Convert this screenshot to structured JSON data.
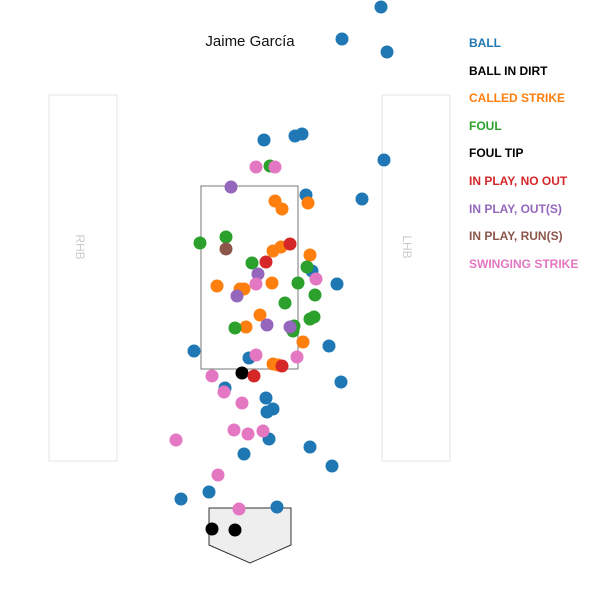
{
  "chart_data": {
    "type": "scatter",
    "title": "Jaime García",
    "zone_labels": {
      "left": "RHB",
      "right": "LHB"
    },
    "categories": [
      {
        "name": "BALL",
        "color": "#1f77b4"
      },
      {
        "name": "BALL IN DIRT",
        "color": "#000000"
      },
      {
        "name": "CALLED STRIKE",
        "color": "#ff7f0e"
      },
      {
        "name": "FOUL",
        "color": "#2ca02c"
      },
      {
        "name": "FOUL TIP",
        "color": "#000000"
      },
      {
        "name": "IN PLAY, NO OUT",
        "color": "#d62728"
      },
      {
        "name": "IN PLAY, OUT(S)",
        "color": "#9467bd"
      },
      {
        "name": "IN PLAY, RUN(S)",
        "color": "#8c564b"
      },
      {
        "name": "SWINGING STRIKE",
        "color": "#e377c2"
      }
    ],
    "series": [
      {
        "name": "BALL",
        "points": [
          [
            381,
            7
          ],
          [
            342,
            39
          ],
          [
            387,
            52
          ],
          [
            264,
            140
          ],
          [
            295,
            136
          ],
          [
            302,
            134
          ],
          [
            384,
            160
          ],
          [
            306,
            195
          ],
          [
            362,
            199
          ],
          [
            312,
            271
          ],
          [
            337,
            284
          ],
          [
            194,
            351
          ],
          [
            329,
            346
          ],
          [
            249,
            358
          ],
          [
            341,
            382
          ],
          [
            225,
            388
          ],
          [
            266,
            398
          ],
          [
            273,
            409
          ],
          [
            267,
            412
          ],
          [
            269,
            439
          ],
          [
            310,
            447
          ],
          [
            244,
            454
          ],
          [
            332,
            466
          ],
          [
            209,
            492
          ],
          [
            181,
            499
          ],
          [
            277,
            507
          ]
        ]
      },
      {
        "name": "BALL IN DIRT",
        "points": [
          [
            242,
            373
          ],
          [
            212,
            529
          ],
          [
            235,
            530
          ]
        ]
      },
      {
        "name": "CALLED STRIKE",
        "points": [
          [
            275,
            201
          ],
          [
            282,
            209
          ],
          [
            308,
            203
          ],
          [
            273,
            251
          ],
          [
            281,
            247
          ],
          [
            310,
            255
          ],
          [
            272,
            283
          ],
          [
            217,
            286
          ],
          [
            240,
            289
          ],
          [
            244,
            289
          ],
          [
            260,
            315
          ],
          [
            246,
            327
          ],
          [
            303,
            342
          ],
          [
            273,
            364
          ],
          [
            278,
            365
          ]
        ]
      },
      {
        "name": "FOUL",
        "points": [
          [
            270,
            166
          ],
          [
            226,
            237
          ],
          [
            200,
            243
          ],
          [
            252,
            263
          ],
          [
            307,
            267
          ],
          [
            298,
            283
          ],
          [
            315,
            295
          ],
          [
            285,
            303
          ],
          [
            310,
            319
          ],
          [
            314,
            317
          ],
          [
            235,
            328
          ],
          [
            293,
            331
          ],
          [
            294,
            326
          ]
        ]
      },
      {
        "name": "FOUL TIP",
        "points": []
      },
      {
        "name": "IN PLAY, NO OUT",
        "points": [
          [
            290,
            244
          ],
          [
            266,
            262
          ],
          [
            282,
            366
          ],
          [
            254,
            376
          ]
        ]
      },
      {
        "name": "IN PLAY, OUT(S)",
        "points": [
          [
            231,
            187
          ],
          [
            258,
            274
          ],
          [
            237,
            296
          ],
          [
            267,
            325
          ],
          [
            290,
            327
          ]
        ]
      },
      {
        "name": "IN PLAY, RUN(S)",
        "points": [
          [
            226,
            249
          ]
        ]
      },
      {
        "name": "SWINGING STRIKE",
        "points": [
          [
            256,
            167
          ],
          [
            275,
            167
          ],
          [
            316,
            279
          ],
          [
            256,
            284
          ],
          [
            297,
            357
          ],
          [
            256,
            355
          ],
          [
            212,
            376
          ],
          [
            224,
            392
          ],
          [
            242,
            403
          ],
          [
            234,
            430
          ],
          [
            248,
            434
          ],
          [
            263,
            431
          ],
          [
            176,
            440
          ],
          [
            218,
            475
          ],
          [
            239,
            509
          ]
        ]
      }
    ]
  }
}
